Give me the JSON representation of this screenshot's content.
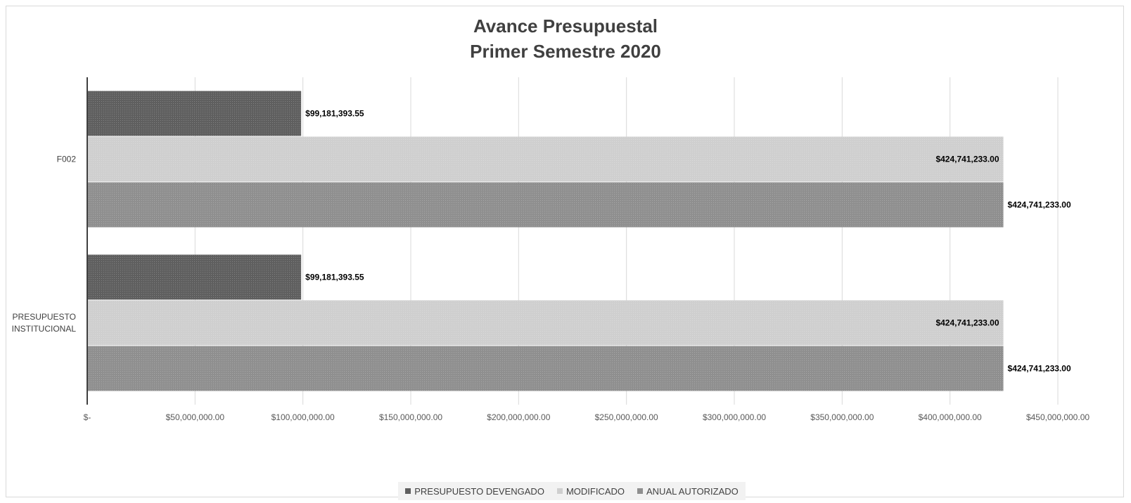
{
  "chart_data": {
    "type": "bar",
    "orientation": "horizontal",
    "title": "Avance Presupuestal",
    "subtitle": "Primer Semestre 2020",
    "categories": [
      "F002",
      "PRESUPUESTO INSTITUCIONAL"
    ],
    "category_lines": [
      [
        "F002"
      ],
      [
        "PRESUPUESTO",
        "INSTITUCIONAL"
      ]
    ],
    "series": [
      {
        "name": "PRESUPUESTO DEVENGADO",
        "values": [
          99181393.55,
          99181393.55
        ],
        "labels": [
          "$99,181,393.55",
          "$99,181,393.55"
        ],
        "color": "#5f5f5f"
      },
      {
        "name": "MODIFICADO",
        "values": [
          424741233.0,
          424741233.0
        ],
        "labels": [
          "$424,741,233.00",
          "$424,741,233.00"
        ],
        "color": "#cfcfcf"
      },
      {
        "name": "ANUAL AUTORIZADO",
        "values": [
          424741233.0,
          424741233.0
        ],
        "labels": [
          "$424,741,233.00",
          "$424,741,233.00"
        ],
        "color": "#8f8f8f"
      }
    ],
    "xlim": [
      0,
      450000000
    ],
    "xticks": [
      0,
      50000000,
      100000000,
      150000000,
      200000000,
      250000000,
      300000000,
      350000000,
      400000000,
      450000000
    ],
    "xtick_labels": [
      "$-",
      "$50,000,000.00",
      "$100,000,000.00",
      "$150,000,000.00",
      "$200,000,000.00",
      "$250,000,000.00",
      "$300,000,000.00",
      "$350,000,000.00",
      "$400,000,000.00",
      "$450,000,000.00"
    ],
    "xlabel": "",
    "ylabel": "",
    "grid": "vertical",
    "legend_position": "bottom"
  }
}
